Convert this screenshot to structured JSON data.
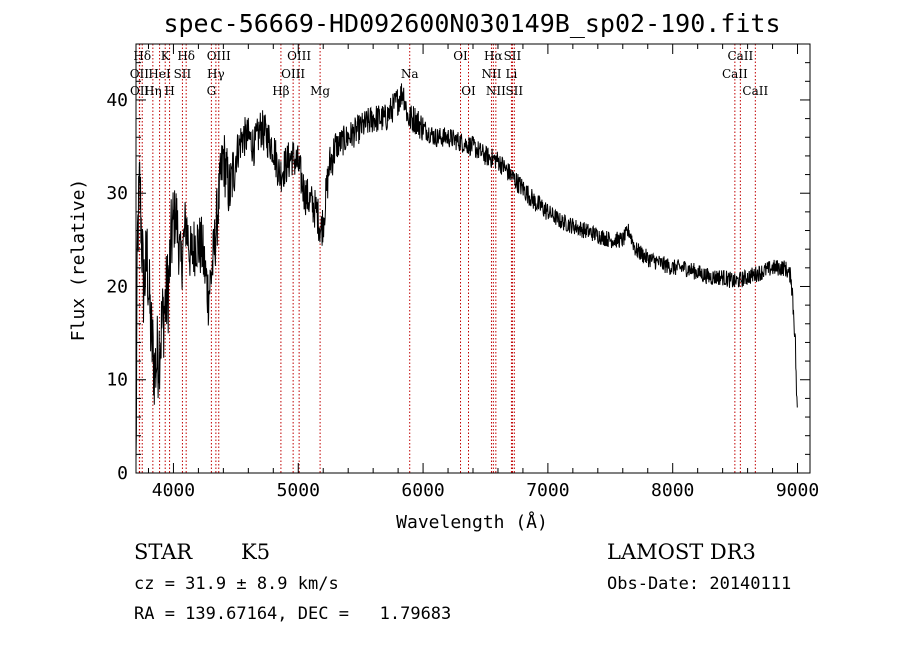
{
  "chart_data": {
    "type": "line",
    "title": "spec-56669-HD092600N030149B_sp02-190.fits",
    "xlabel": "Wavelength (Å)",
    "ylabel": "Flux (relative)",
    "xlim": [
      3700,
      9100
    ],
    "ylim": [
      0,
      46
    ],
    "x_ticks": [
      4000,
      5000,
      6000,
      7000,
      8000,
      9000
    ],
    "y_ticks": [
      0,
      10,
      20,
      30,
      40
    ],
    "spectrum_anchors": [
      [
        3700,
        0
      ],
      [
        3712,
        25
      ],
      [
        3730,
        31
      ],
      [
        3760,
        20
      ],
      [
        3790,
        23
      ],
      [
        3820,
        15
      ],
      [
        3850,
        11
      ],
      [
        3880,
        13
      ],
      [
        3920,
        17
      ],
      [
        3960,
        20
      ],
      [
        3990,
        26
      ],
      [
        4020,
        28
      ],
      [
        4060,
        22
      ],
      [
        4100,
        27
      ],
      [
        4140,
        23
      ],
      [
        4180,
        25
      ],
      [
        4230,
        24
      ],
      [
        4280,
        19
      ],
      [
        4320,
        23
      ],
      [
        4360,
        29
      ],
      [
        4400,
        34
      ],
      [
        4450,
        30
      ],
      [
        4500,
        34
      ],
      [
        4550,
        36
      ],
      [
        4600,
        36
      ],
      [
        4650,
        35
      ],
      [
        4700,
        37
      ],
      [
        4750,
        36
      ],
      [
        4800,
        35
      ],
      [
        4850,
        32
      ],
      [
        4900,
        33
      ],
      [
        4950,
        34
      ],
      [
        5000,
        33
      ],
      [
        5050,
        30
      ],
      [
        5100,
        29
      ],
      [
        5150,
        28
      ],
      [
        5180,
        26
      ],
      [
        5200,
        27
      ],
      [
        5250,
        33
      ],
      [
        5300,
        35
      ],
      [
        5400,
        36
      ],
      [
        5500,
        37
      ],
      [
        5600,
        38
      ],
      [
        5700,
        38
      ],
      [
        5800,
        40
      ],
      [
        5840,
        41
      ],
      [
        5880,
        38
      ],
      [
        5930,
        38
      ],
      [
        6000,
        37
      ],
      [
        6100,
        36
      ],
      [
        6200,
        36
      ],
      [
        6300,
        35.5
      ],
      [
        6400,
        35
      ],
      [
        6500,
        34
      ],
      [
        6600,
        33.5
      ],
      [
        6700,
        32
      ],
      [
        6800,
        30.5
      ],
      [
        6900,
        29
      ],
      [
        7000,
        28
      ],
      [
        7100,
        27
      ],
      [
        7200,
        26.5
      ],
      [
        7300,
        26
      ],
      [
        7400,
        25.5
      ],
      [
        7500,
        25
      ],
      [
        7600,
        25
      ],
      [
        7650,
        26
      ],
      [
        7700,
        24
      ],
      [
        7800,
        23
      ],
      [
        7900,
        22.5
      ],
      [
        8000,
        22
      ],
      [
        8100,
        22
      ],
      [
        8200,
        21.5
      ],
      [
        8300,
        21
      ],
      [
        8400,
        21
      ],
      [
        8500,
        20.5
      ],
      [
        8600,
        21
      ],
      [
        8700,
        21.5
      ],
      [
        8800,
        22
      ],
      [
        8900,
        22
      ],
      [
        8950,
        21
      ],
      [
        8980,
        15
      ],
      [
        9000,
        5
      ]
    ],
    "spectral_lines": [
      {
        "label": "Hδ",
        "x": 3750,
        "row": 0
      },
      {
        "label": "K",
        "x": 3934,
        "row": 0
      },
      {
        "label": "Hδ",
        "x": 4102,
        "row": 0
      },
      {
        "label": "OIII",
        "x": 4363,
        "row": 0
      },
      {
        "label": "OIII",
        "x": 5007,
        "row": 0
      },
      {
        "label": "OI",
        "x": 6300,
        "row": 0
      },
      {
        "label": "Hα",
        "x": 6563,
        "row": 0
      },
      {
        "label": "SII",
        "x": 6716,
        "row": 0
      },
      {
        "label": "CaII",
        "x": 8542,
        "row": 0
      },
      {
        "label": "OII",
        "x": 3727,
        "row": 1
      },
      {
        "label": "HeI",
        "x": 3889,
        "row": 1
      },
      {
        "label": "SII",
        "x": 4072,
        "row": 1
      },
      {
        "label": "Hγ",
        "x": 4340,
        "row": 1
      },
      {
        "label": "OIII",
        "x": 4959,
        "row": 1
      },
      {
        "label": "Na",
        "x": 5893,
        "row": 1
      },
      {
        "label": "NII",
        "x": 6548,
        "row": 1
      },
      {
        "label": "Li",
        "x": 6708,
        "row": 1
      },
      {
        "label": "CaII",
        "x": 8498,
        "row": 1
      },
      {
        "label": "OII",
        "x": 3729,
        "row": 2
      },
      {
        "label": "Hη",
        "x": 3835,
        "row": 2
      },
      {
        "label": "H",
        "x": 3969,
        "row": 2
      },
      {
        "label": "G",
        "x": 4304,
        "row": 2
      },
      {
        "label": "Hβ",
        "x": 4861,
        "row": 2
      },
      {
        "label": "Mg",
        "x": 5175,
        "row": 2
      },
      {
        "label": "OI",
        "x": 6364,
        "row": 2
      },
      {
        "label": "NII",
        "x": 6583,
        "row": 2
      },
      {
        "label": "SII",
        "x": 6731,
        "row": 2
      },
      {
        "label": "CaII",
        "x": 8662,
        "row": 2
      }
    ]
  },
  "info": {
    "object_class": "STAR",
    "subclass": "K5",
    "cz_text": "cz = 31.9 ± 8.9 km/s",
    "radec_text": "RA = 139.67164, DEC =   1.79683",
    "survey": "LAMOST DR3",
    "obs_date_text": "Obs-Date: 20140111"
  },
  "colors": {
    "spectrum": "#000000",
    "line_markers": "#c00000",
    "axes": "#000000"
  }
}
